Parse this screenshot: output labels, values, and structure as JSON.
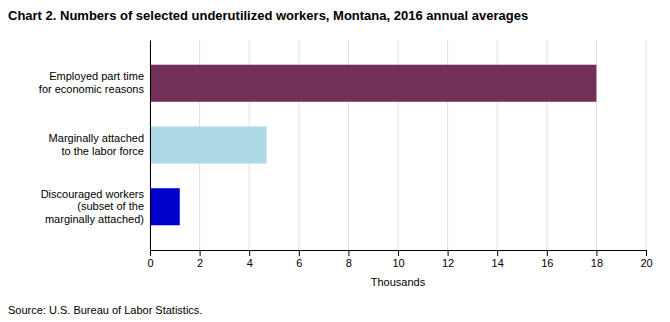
{
  "chart_data": {
    "type": "bar",
    "orientation": "horizontal",
    "title": "Chart 2. Numbers of selected underutilized workers, Montana, 2016 annual averages",
    "categories": [
      "Discouraged workers\n(subset of the\nmarginally attached)",
      "Marginally attached\nto the labor force",
      "Employed part time\nfor economic reasons"
    ],
    "values": [
      1.2,
      4.7,
      18.0
    ],
    "colors": [
      "#0000cc",
      "#add8e6",
      "#722f57"
    ],
    "xlim": [
      0,
      20
    ],
    "xticks": [
      0,
      2,
      4,
      6,
      8,
      10,
      12,
      14,
      16,
      18,
      20
    ],
    "xlabel": "Thousands",
    "grid": true,
    "annotations": [
      "Source: U.S. Bureau of Labor Statistics."
    ]
  }
}
